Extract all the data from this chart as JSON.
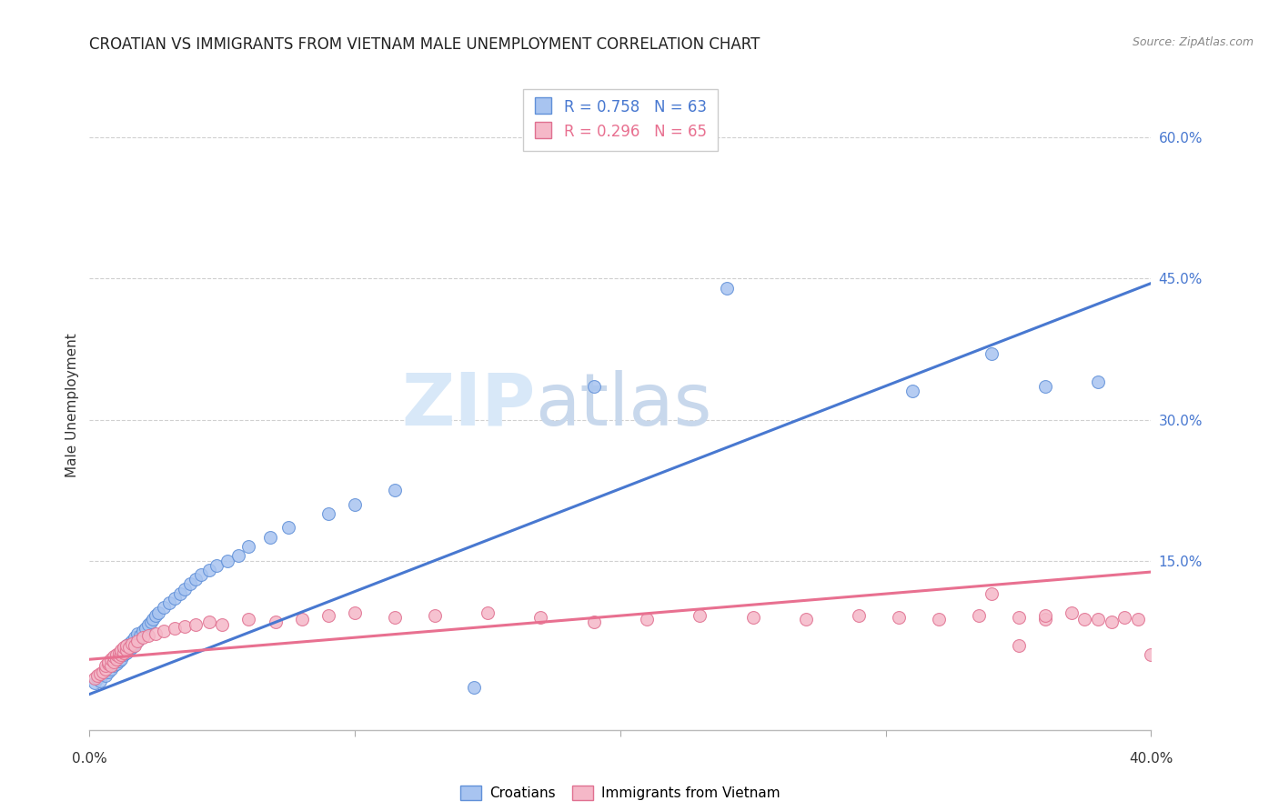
{
  "title": "CROATIAN VS IMMIGRANTS FROM VIETNAM MALE UNEMPLOYMENT CORRELATION CHART",
  "source": "Source: ZipAtlas.com",
  "ylabel": "Male Unemployment",
  "yticks_labels": [
    "60.0%",
    "45.0%",
    "30.0%",
    "15.0%"
  ],
  "ytick_vals": [
    0.6,
    0.45,
    0.3,
    0.15
  ],
  "xlim": [
    0.0,
    0.4
  ],
  "ylim": [
    -0.03,
    0.66
  ],
  "legend_r1_pre": "R = 0.758",
  "legend_r1_post": "N = 63",
  "legend_r2_pre": "R = 0.296",
  "legend_r2_post": "N = 65",
  "legend_label1": "Croatians",
  "legend_label2": "Immigrants from Vietnam",
  "color_blue_face": "#a8c4f0",
  "color_blue_edge": "#6090d8",
  "color_pink_face": "#f5b8c8",
  "color_pink_edge": "#e07090",
  "color_line_blue": "#4878d0",
  "color_line_pink": "#e87090",
  "watermark_zip": "ZIP",
  "watermark_atlas": "atlas",
  "watermark_color": "#d8e8f8",
  "grid_color": "#d0d0d0",
  "background_color": "#ffffff",
  "blue_scatter_x": [
    0.002,
    0.003,
    0.004,
    0.005,
    0.006,
    0.006,
    0.007,
    0.007,
    0.008,
    0.008,
    0.009,
    0.009,
    0.01,
    0.01,
    0.011,
    0.011,
    0.012,
    0.012,
    0.013,
    0.013,
    0.014,
    0.014,
    0.015,
    0.015,
    0.016,
    0.016,
    0.017,
    0.017,
    0.018,
    0.018,
    0.019,
    0.02,
    0.021,
    0.022,
    0.023,
    0.024,
    0.025,
    0.026,
    0.028,
    0.03,
    0.032,
    0.034,
    0.036,
    0.038,
    0.04,
    0.042,
    0.045,
    0.048,
    0.052,
    0.056,
    0.06,
    0.068,
    0.075,
    0.09,
    0.1,
    0.115,
    0.145,
    0.19,
    0.24,
    0.31,
    0.34,
    0.36,
    0.38
  ],
  "blue_scatter_y": [
    0.02,
    0.025,
    0.022,
    0.03,
    0.028,
    0.035,
    0.032,
    0.038,
    0.035,
    0.042,
    0.038,
    0.045,
    0.04,
    0.048,
    0.043,
    0.05,
    0.045,
    0.052,
    0.05,
    0.055,
    0.052,
    0.06,
    0.055,
    0.062,
    0.058,
    0.065,
    0.062,
    0.068,
    0.065,
    0.072,
    0.07,
    0.075,
    0.078,
    0.082,
    0.085,
    0.088,
    0.092,
    0.095,
    0.1,
    0.105,
    0.11,
    0.115,
    0.12,
    0.125,
    0.13,
    0.135,
    0.14,
    0.145,
    0.15,
    0.155,
    0.165,
    0.175,
    0.185,
    0.2,
    0.21,
    0.225,
    0.015,
    0.335,
    0.44,
    0.33,
    0.37,
    0.335,
    0.34
  ],
  "pink_scatter_x": [
    0.002,
    0.003,
    0.004,
    0.005,
    0.006,
    0.006,
    0.007,
    0.007,
    0.008,
    0.008,
    0.009,
    0.009,
    0.01,
    0.01,
    0.011,
    0.011,
    0.012,
    0.012,
    0.013,
    0.013,
    0.014,
    0.014,
    0.015,
    0.016,
    0.017,
    0.018,
    0.02,
    0.022,
    0.025,
    0.028,
    0.032,
    0.036,
    0.04,
    0.045,
    0.05,
    0.06,
    0.07,
    0.08,
    0.09,
    0.1,
    0.115,
    0.13,
    0.15,
    0.17,
    0.19,
    0.21,
    0.23,
    0.25,
    0.27,
    0.29,
    0.305,
    0.32,
    0.335,
    0.35,
    0.36,
    0.37,
    0.38,
    0.385,
    0.39,
    0.395,
    0.4,
    0.34,
    0.35,
    0.36,
    0.375
  ],
  "pink_scatter_y": [
    0.025,
    0.028,
    0.03,
    0.032,
    0.035,
    0.038,
    0.04,
    0.042,
    0.038,
    0.045,
    0.042,
    0.048,
    0.045,
    0.05,
    0.048,
    0.052,
    0.05,
    0.055,
    0.052,
    0.058,
    0.055,
    0.06,
    0.058,
    0.062,
    0.06,
    0.065,
    0.068,
    0.07,
    0.072,
    0.075,
    0.078,
    0.08,
    0.082,
    0.085,
    0.082,
    0.088,
    0.085,
    0.088,
    0.092,
    0.095,
    0.09,
    0.092,
    0.095,
    0.09,
    0.085,
    0.088,
    0.092,
    0.09,
    0.088,
    0.092,
    0.09,
    0.088,
    0.092,
    0.09,
    0.088,
    0.095,
    0.088,
    0.085,
    0.09,
    0.088,
    0.05,
    0.115,
    0.06,
    0.092,
    0.088
  ],
  "blue_line_x": [
    0.0,
    0.4
  ],
  "blue_line_y": [
    0.008,
    0.445
  ],
  "pink_line_x": [
    0.0,
    0.4
  ],
  "pink_line_y": [
    0.045,
    0.138
  ]
}
